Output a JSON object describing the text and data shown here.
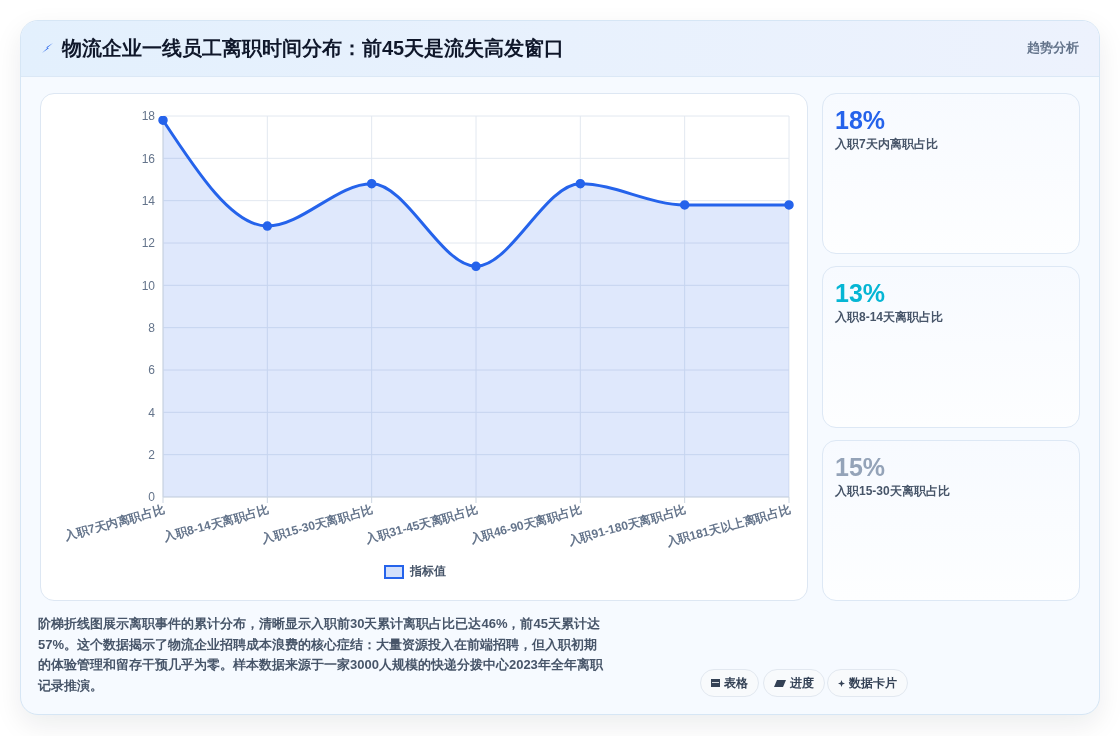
{
  "chart_data": [
    {
      "type": "area",
      "title": "物流企业一线员工离职时间分布：前45天是流失高发窗口",
      "categories": [
        "入职7天内离职占比",
        "入职8-14天离职占比",
        "入职15-30天离职占比",
        "入职31-45天离职占比",
        "入职46-90天离职占比",
        "入职91-180天离职占比",
        "入职181天以上离职占比"
      ],
      "series": [
        {
          "name": "指标值",
          "color": "#2563eb",
          "values": [
            17.8,
            12.8,
            14.8,
            10.9,
            14.8,
            13.8,
            13.8
          ]
        }
      ],
      "ylim": [
        0,
        18
      ],
      "yticks": [
        0,
        2,
        4,
        6,
        8,
        10,
        12,
        14,
        16,
        18
      ],
      "grid": true,
      "legend": "bottom",
      "marker": "circle",
      "annotations": [
        "趋势分析",
        "阶梯折线图展示离职事件的累计分布，清晰显示入职前30天累计离职占比已达46%，前45天累计达57%。这个数据揭示了物流企业招聘成本浪费的核心症结：大量资源投入在前端招聘，但入职初期的体验管理和留存干预几乎为零。样本数据来源于一家3000人规模的快递分拨中心2023年全年离职记录推演。",
        "表格",
        "进度",
        "数据卡片"
      ]
    },
    {
      "type": "other",
      "categories": [
        "入职7天内离职占比",
        "入职8-14天离职占比",
        "入职15-30天离职占比"
      ],
      "value_labels": [
        "18%",
        "13%",
        "15%"
      ]
    }
  ]
}
